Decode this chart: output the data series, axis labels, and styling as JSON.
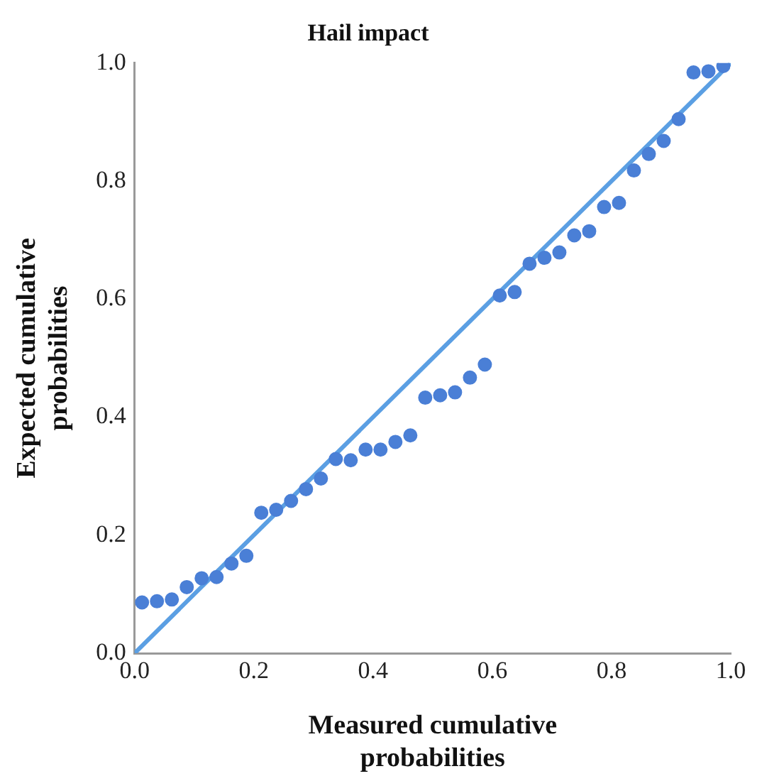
{
  "chart_data": {
    "type": "scatter",
    "title": "Hail impact",
    "xlabel": "Measured cumulative probabilities",
    "ylabel": "Expected cumulative probabilities",
    "x": [
      0.0125,
      0.0375,
      0.0625,
      0.0875,
      0.1125,
      0.1375,
      0.1625,
      0.1875,
      0.2125,
      0.2375,
      0.2625,
      0.2875,
      0.3125,
      0.3375,
      0.3625,
      0.3875,
      0.4125,
      0.4375,
      0.4625,
      0.4875,
      0.5125,
      0.5375,
      0.5625,
      0.5875,
      0.6125,
      0.6375,
      0.6625,
      0.6875,
      0.7125,
      0.7375,
      0.7625,
      0.7875,
      0.8125,
      0.8375,
      0.8625,
      0.8875,
      0.9125,
      0.9375,
      0.9625,
      0.9875
    ],
    "series": [
      {
        "marker": "circle",
        "color": "#4a7fd6",
        "values": [
          0.086,
          0.088,
          0.091,
          0.112,
          0.127,
          0.129,
          0.152,
          0.165,
          0.238,
          0.243,
          0.258,
          0.278,
          0.296,
          0.329,
          0.327,
          0.345,
          0.345,
          0.358,
          0.369,
          0.433,
          0.437,
          0.442,
          0.467,
          0.489,
          0.606,
          0.612,
          0.66,
          0.67,
          0.679,
          0.708,
          0.715,
          0.756,
          0.763,
          0.818,
          0.846,
          0.868,
          0.905,
          0.984,
          0.986,
          0.995
        ]
      },
      {
        "type": "line",
        "color": "#5b9fe3",
        "x": [
          0,
          1
        ],
        "values": [
          0,
          1
        ]
      }
    ],
    "xlim": [
      0,
      1
    ],
    "ylim": [
      0,
      1
    ],
    "xticks": [
      {
        "value": 0,
        "label": "0.0"
      },
      {
        "value": 0.2,
        "label": "0.2"
      },
      {
        "value": 0.4,
        "label": "0.4"
      },
      {
        "value": 0.6,
        "label": "0.6"
      },
      {
        "value": 0.8,
        "label": "0.8"
      },
      {
        "value": 1,
        "label": "1.0"
      }
    ],
    "yticks": [
      {
        "value": 0,
        "label": "0.0"
      },
      {
        "value": 0.2,
        "label": "0.2"
      },
      {
        "value": 0.4,
        "label": "0.4"
      },
      {
        "value": 0.6,
        "label": "0.6"
      },
      {
        "value": 0.8,
        "label": "0.8"
      },
      {
        "value": 1,
        "label": "1.0"
      }
    ],
    "grid": false,
    "legend": false
  }
}
